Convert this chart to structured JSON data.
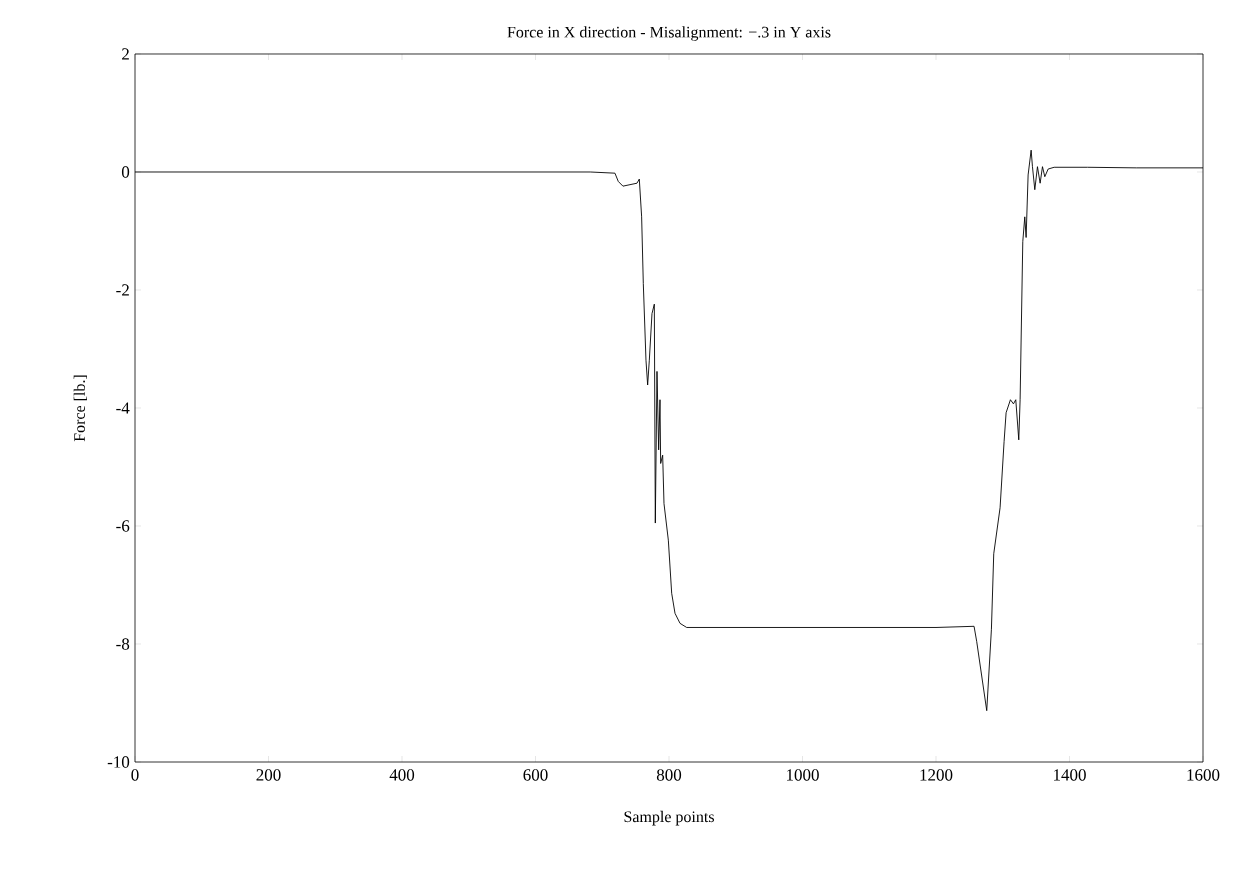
{
  "chart_data": {
    "type": "line",
    "title": "Force in X direction - Misalignment: −.3 in Y axis",
    "xlabel": "Sample points",
    "ylabel": "Force [lb.]",
    "x": [
      0,
      100,
      200,
      300,
      400,
      500,
      600,
      682,
      719,
      724,
      731,
      752,
      755.5,
      759,
      761.5,
      765.5,
      768,
      770.5,
      774.5,
      778,
      779.5,
      782,
      784.5,
      786.5,
      787.5,
      790.5,
      792.5,
      799,
      804,
      809,
      816.5,
      826.5,
      900,
      1000,
      1100,
      1200,
      1257,
      1261,
      1276,
      1283,
      1286.5,
      1296,
      1302,
      1305,
      1311.5,
      1316,
      1319.5,
      1324,
      1326,
      1330,
      1333,
      1335,
      1338,
      1342.5,
      1344.5,
      1348,
      1352,
      1356,
      1359.5,
      1363,
      1368,
      1377,
      1427,
      1500,
      1600
    ],
    "series": [
      {
        "color": "#000000",
        "values": [
          0.0,
          0.0,
          0.0,
          0.0,
          0.0,
          0.0,
          0.0,
          0.0,
          -0.02,
          -0.16,
          -0.24,
          -0.19,
          -0.12,
          -0.76,
          -1.89,
          -3.19,
          -3.61,
          -3.19,
          -2.4,
          -2.24,
          -5.95,
          -3.38,
          -4.71,
          -3.86,
          -4.94,
          -4.8,
          -5.62,
          -6.24,
          -7.14,
          -7.48,
          -7.65,
          -7.72,
          -7.72,
          -7.72,
          -7.72,
          -7.72,
          -7.7,
          -7.96,
          -9.13,
          -7.75,
          -6.47,
          -5.69,
          -4.57,
          -4.08,
          -3.86,
          -3.93,
          -3.86,
          -4.54,
          -3.86,
          -1.18,
          -0.76,
          -1.11,
          -0.05,
          0.37,
          0.09,
          -0.3,
          0.09,
          -0.19,
          0.09,
          -0.08,
          0.05,
          0.08,
          0.08,
          0.07,
          0.07
        ]
      }
    ],
    "xlim": [
      0,
      1600
    ],
    "ylim": [
      -10,
      2
    ],
    "xticks": [
      0,
      200,
      400,
      600,
      800,
      1000,
      1200,
      1400,
      1600
    ],
    "yticks": [
      -10,
      -8,
      -6,
      -4,
      -2,
      0,
      2
    ],
    "marker": "none",
    "line_style": "solid"
  }
}
